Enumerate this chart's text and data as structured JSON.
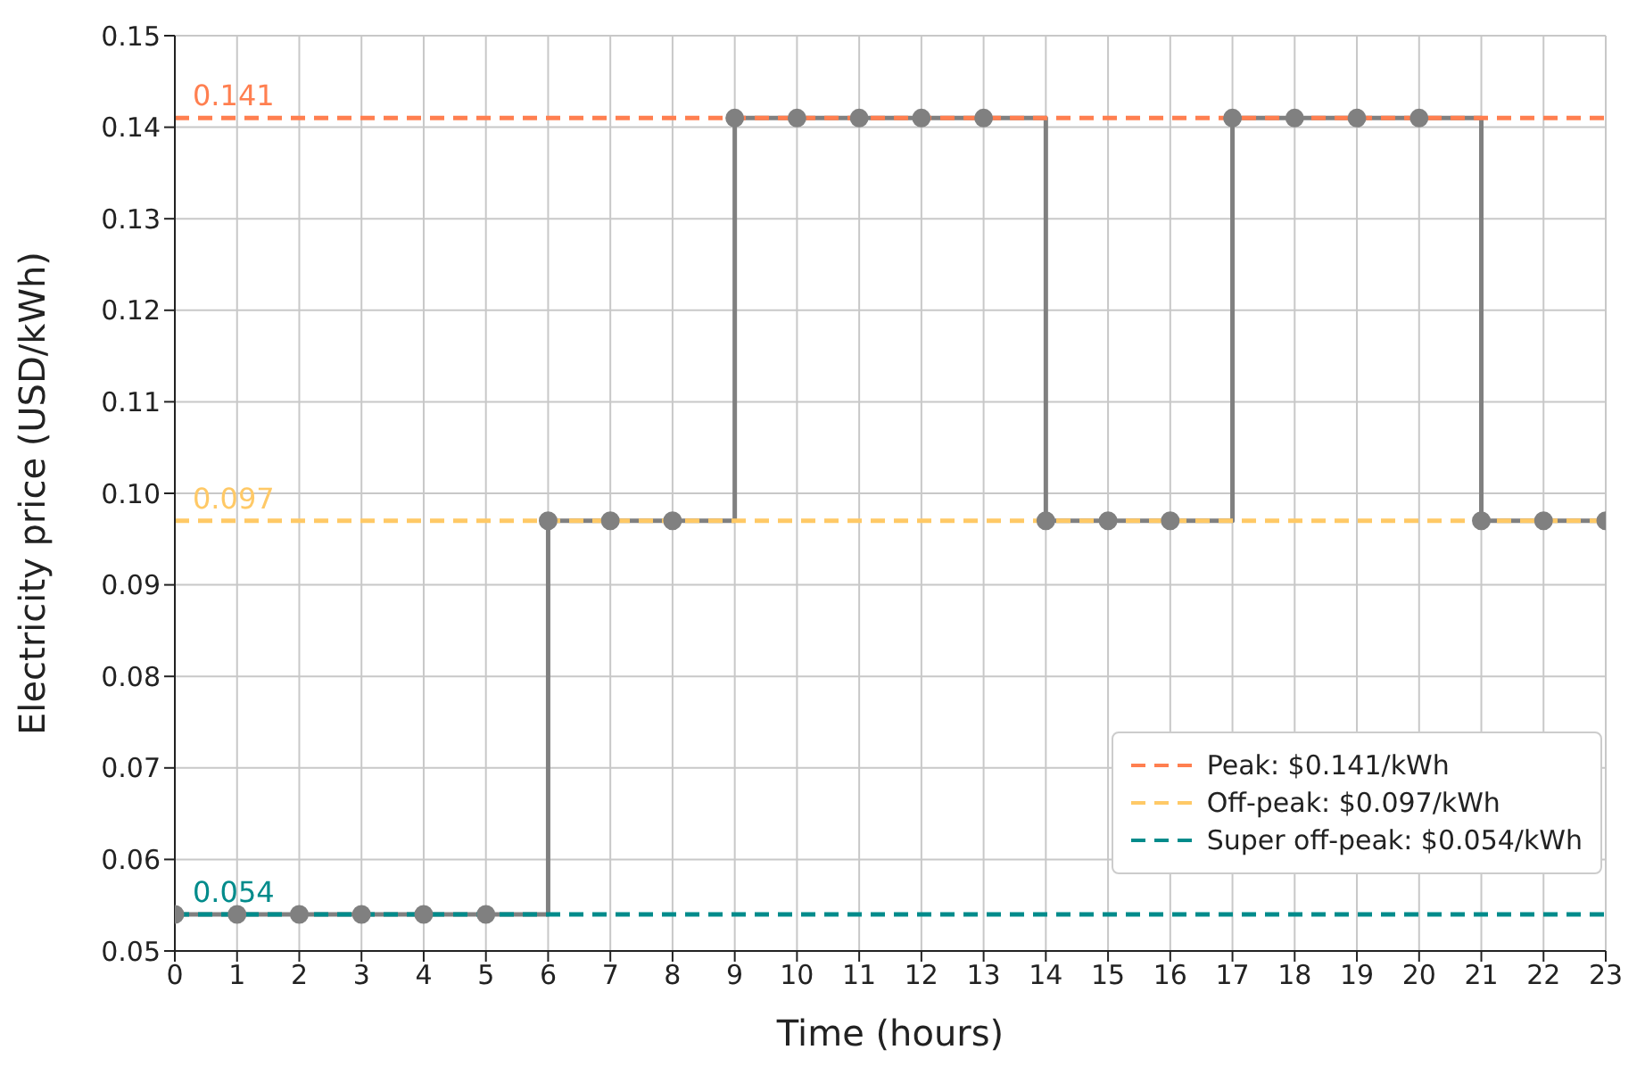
{
  "chart_data": {
    "type": "step",
    "xlabel": "Time (hours)",
    "ylabel": "Electricity price (USD/kWh)",
    "xlim": [
      0,
      23
    ],
    "xticks": [
      0,
      1,
      2,
      3,
      4,
      5,
      6,
      7,
      8,
      9,
      10,
      11,
      12,
      13,
      14,
      15,
      16,
      17,
      18,
      19,
      20,
      21,
      22,
      23
    ],
    "ylim": [
      0.05,
      0.15
    ],
    "yticks": [
      0.05,
      0.06,
      0.07,
      0.08,
      0.09,
      {
        "value": 0.1,
        "label": "0.10"
      },
      0.11,
      0.12,
      0.13,
      0.14,
      0.15
    ],
    "grid": true,
    "legend": "bottom right",
    "series": [
      {
        "type": "step",
        "color": "#808080",
        "marker": "circle",
        "x": [
          0,
          1,
          2,
          3,
          4,
          5,
          6,
          7,
          8,
          9,
          10,
          11,
          12,
          13,
          14,
          15,
          16,
          17,
          18,
          19,
          20,
          21,
          22,
          23
        ],
        "values": [
          0.054,
          0.054,
          0.054,
          0.054,
          0.054,
          0.054,
          0.097,
          0.097,
          0.097,
          0.141,
          0.141,
          0.141,
          0.141,
          0.141,
          0.097,
          0.097,
          0.097,
          0.141,
          0.141,
          0.141,
          0.141,
          0.097,
          0.097,
          0.097
        ]
      },
      {
        "type": "line",
        "name": "Peak: $0.141/kWh",
        "color": "#ff7f50",
        "line_style": "dashed",
        "x": [
          0,
          23
        ],
        "values": [
          0.141,
          0.141
        ]
      },
      {
        "type": "line",
        "name": "Off-peak: $0.097/kWh",
        "color": "#ffc966",
        "line_style": "dashed",
        "x": [
          0,
          23
        ],
        "values": [
          0.097,
          0.097
        ]
      },
      {
        "type": "line",
        "name": "Super off-peak: $0.054/kWh",
        "color": "#008b8b",
        "line_style": "dashed",
        "x": [
          0,
          23
        ],
        "values": [
          0.054,
          0.054
        ]
      }
    ],
    "annotations": [
      {
        "text": "0.141",
        "y": 0.141
      },
      {
        "text": "0.097",
        "y": 0.097
      },
      {
        "text": "0.054",
        "y": 0.054
      }
    ]
  }
}
